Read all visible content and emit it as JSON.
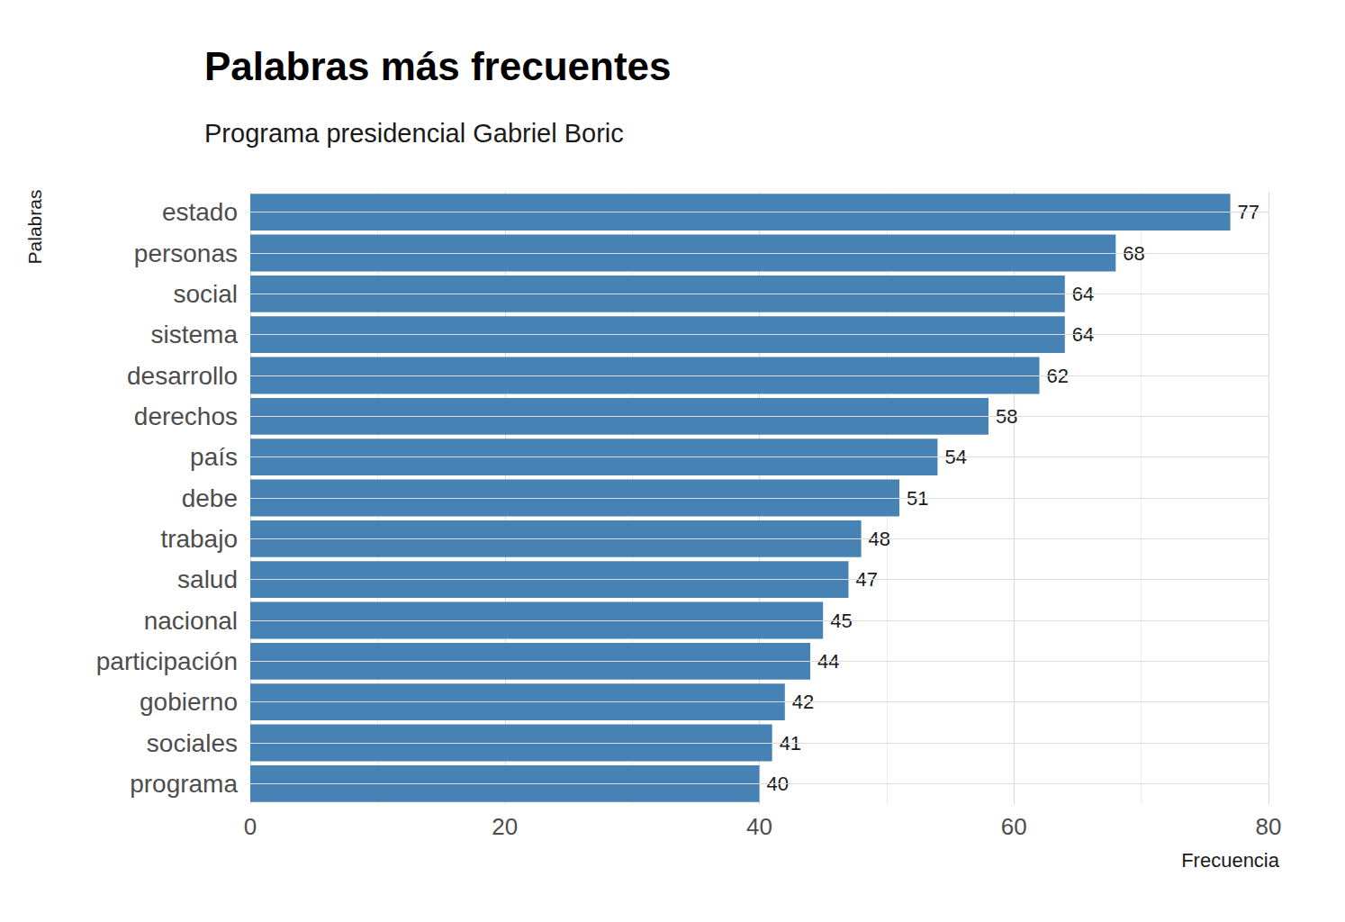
{
  "chart_data": {
    "type": "bar",
    "title": "Palabras más frecuentes",
    "subtitle": "Programa presidencial Gabriel Boric",
    "x_label": "Frecuencia",
    "y_label": "Palabras",
    "orientation": "horizontal",
    "categories": [
      "estado",
      "personas",
      "social",
      "sistema",
      "desarrollo",
      "derechos",
      "país",
      "debe",
      "trabajo",
      "salud",
      "nacional",
      "participación",
      "gobierno",
      "sociales",
      "programa"
    ],
    "values": [
      77,
      68,
      64,
      64,
      62,
      58,
      54,
      51,
      48,
      47,
      45,
      44,
      42,
      41,
      40
    ],
    "color": "#4682b4",
    "xlim": [
      0,
      80
    ],
    "xticks": [
      0,
      20,
      40,
      60,
      80
    ],
    "grid": true,
    "data_labels": true
  }
}
